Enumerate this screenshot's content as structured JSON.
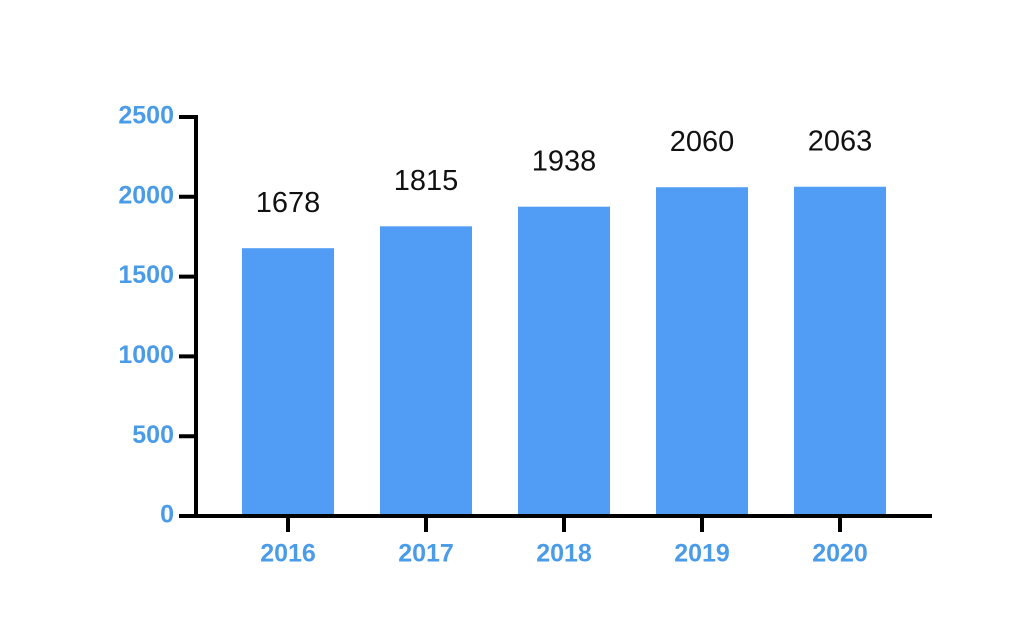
{
  "chart_data": {
    "type": "bar",
    "categories": [
      "2016",
      "2017",
      "2018",
      "2019",
      "2020"
    ],
    "values": [
      1678,
      1815,
      1938,
      2060,
      2063
    ],
    "color": "#519df5",
    "ylim": [
      0,
      2500
    ],
    "yticks": [
      0,
      500,
      1000,
      1500,
      2000,
      2500
    ],
    "grid": false
  }
}
